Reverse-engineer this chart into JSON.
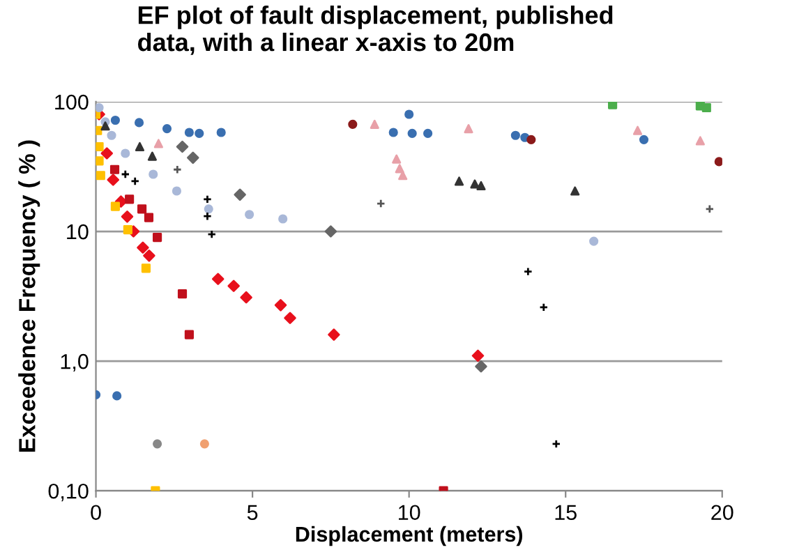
{
  "chart_data": {
    "type": "scatter",
    "title": "EF plot of fault displacement, published\ndata, with a linear x-axis to 20m",
    "xlabel": "Displacement (meters)",
    "ylabel": "Exceedence Frequency ( % )",
    "xlim": [
      0,
      20
    ],
    "xticks": [
      0,
      5,
      10,
      15,
      20
    ],
    "ylim": [
      0.1,
      100
    ],
    "yticks": [
      {
        "value": 0.1,
        "label": "0,10"
      },
      {
        "value": 1,
        "label": "1,0"
      },
      {
        "value": 10,
        "label": "10"
      },
      {
        "value": 100,
        "label": "100"
      }
    ],
    "log": "y",
    "grid": "y",
    "legend": false,
    "series": [
      {
        "color": "#e8101c",
        "marker": "diamond",
        "x": [
          0.1,
          0.35,
          0.55,
          0.8,
          1.0,
          1.2,
          1.5,
          1.7,
          3.9,
          4.4,
          4.8,
          5.9,
          6.2,
          7.6,
          12.2
        ],
        "values": [
          80,
          40,
          25,
          17,
          13,
          10,
          7.5,
          6.5,
          4.3,
          3.8,
          3.1,
          2.7,
          2.15,
          1.6,
          1.1
        ]
      },
      {
        "color": "#c0101c",
        "marker": "square",
        "x": [
          0.6,
          1.07,
          1.47,
          1.69,
          1.96,
          2.76,
          2.98,
          11.1
        ],
        "values": [
          30,
          17.7,
          14.9,
          12.8,
          9,
          3.3,
          1.6,
          0.1
        ]
      },
      {
        "color": "#ffc000",
        "marker": "square",
        "x": [
          0,
          0.05,
          0.1,
          0.1,
          0.15,
          0.62,
          1.02,
          1.6,
          1.9
        ],
        "values": [
          80,
          60,
          45,
          35,
          27,
          15.6,
          10.3,
          5.2,
          0.1
        ]
      },
      {
        "color": "#3a6fb0",
        "marker": "circle",
        "x": [
          0.62,
          1.38,
          2.27,
          2.98,
          3.3,
          4.0,
          9.5,
          10,
          10.1,
          10.6,
          13.4,
          13.7,
          17.5,
          0,
          0.67
        ],
        "values": [
          72,
          69,
          62,
          58,
          57,
          58,
          58,
          80,
          57,
          57,
          55,
          53,
          51,
          0.55,
          0.54
        ]
      },
      {
        "color": "#a9b8d8",
        "marker": "circle",
        "x": [
          0.1,
          0.3,
          0.5,
          0.94,
          1.83,
          2.58,
          3.6,
          4.9,
          5.97,
          15.9
        ],
        "values": [
          90,
          70,
          55,
          40,
          27.6,
          20.5,
          14.9,
          13.5,
          12.5,
          8.4
        ]
      },
      {
        "color": "#000000",
        "marker": "cross",
        "x": [
          0.94,
          1.25,
          3.56,
          3.56,
          3.7,
          13.8,
          14.3,
          14.7
        ],
        "values": [
          27.6,
          24.4,
          17.7,
          13.1,
          9.5,
          4.9,
          2.6,
          0.23
        ]
      },
      {
        "color": "#333333",
        "marker": "triangle",
        "x": [
          0.3,
          1.4,
          1.8,
          11.6,
          12.1,
          12.3,
          15.3
        ],
        "values": [
          65,
          45,
          38,
          24.4,
          23.2,
          22.5,
          20.5
        ]
      },
      {
        "color": "#e8a0a8",
        "marker": "triangle",
        "x": [
          2.0,
          9.6,
          9.7,
          9.8,
          8.9,
          11.9,
          17.3,
          19.3
        ],
        "values": [
          47.6,
          36.2,
          30.5,
          27,
          67,
          62,
          60,
          50
        ]
      },
      {
        "color": "#4cae4c",
        "marker": "square",
        "x": [
          16.5,
          19.3,
          19.5
        ],
        "values": [
          95,
          93,
          90
        ]
      },
      {
        "color": "#555555",
        "marker": "cross",
        "x": [
          2.6,
          9.1,
          19.6
        ],
        "values": [
          30,
          16.4,
          14.9
        ]
      },
      {
        "color": "#666666",
        "marker": "diamond",
        "x": [
          2.76,
          3.1,
          4.6,
          7.5,
          12.3
        ],
        "values": [
          45,
          37,
          19.2,
          10,
          0.91
        ]
      },
      {
        "color": "#8b1a1a",
        "marker": "circle",
        "x": [
          8.2,
          13.9,
          19.9
        ],
        "values": [
          67,
          51,
          34.5
        ]
      },
      {
        "color": "#f0a070",
        "marker": "circle",
        "x": [
          3.47
        ],
        "values": [
          0.23
        ]
      },
      {
        "color": "#888888",
        "marker": "circle",
        "x": [
          1.96
        ],
        "values": [
          0.23
        ]
      }
    ]
  }
}
